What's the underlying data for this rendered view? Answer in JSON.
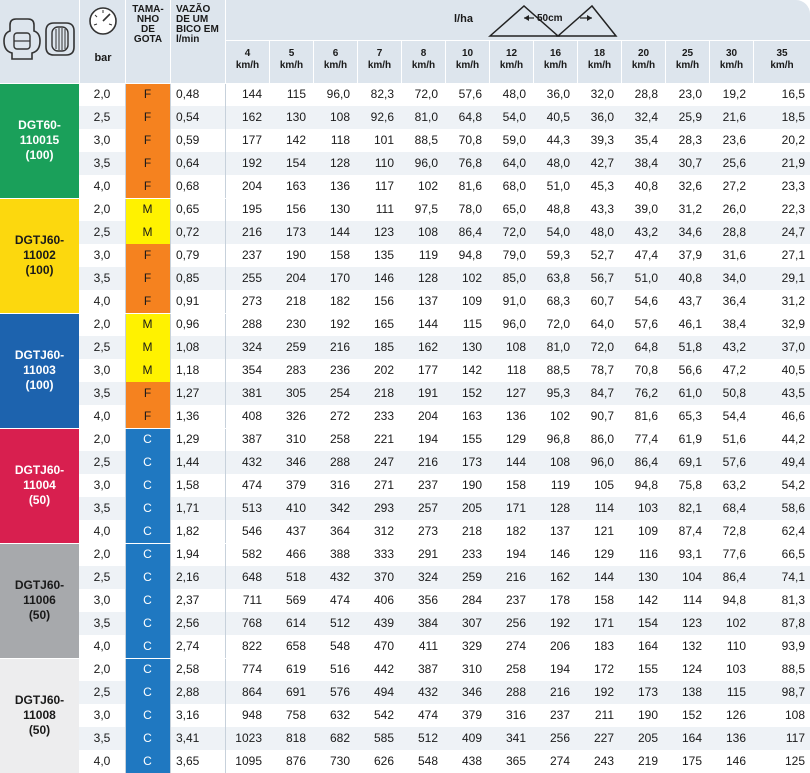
{
  "header": {
    "bar_label": "bar",
    "gota_label_lines": [
      "TAMA-",
      "NHO",
      "DE",
      "GOTA"
    ],
    "vazao_label_lines": [
      "VAZÃO",
      "DE UM",
      "BICO EM",
      "l/min"
    ],
    "rate_unit": "l/ha",
    "spacing_label": "50cm",
    "speed_unit": "km/h",
    "speeds": [
      "4",
      "5",
      "6",
      "7",
      "8",
      "10",
      "12",
      "16",
      "18",
      "20",
      "25",
      "30",
      "35"
    ]
  },
  "colors": {
    "header_bg": "#dde5ed",
    "row_shade": "#eef2f6",
    "drop_F": "#f5821f",
    "drop_M": "#fff200",
    "drop_C": "#1f78c1"
  },
  "groups": [
    {
      "label_lines": [
        "DGT60-",
        "110015",
        "(100)"
      ],
      "color": "#1aa05a",
      "rows": [
        {
          "bar": "2,0",
          "gota": "F",
          "vazao": "0,48",
          "values": [
            "144",
            "115",
            "96,0",
            "82,3",
            "72,0",
            "57,6",
            "48,0",
            "36,0",
            "32,0",
            "28,8",
            "23,0",
            "19,2",
            "16,5"
          ]
        },
        {
          "bar": "2,5",
          "gota": "F",
          "vazao": "0,54",
          "values": [
            "162",
            "130",
            "108",
            "92,6",
            "81,0",
            "64,8",
            "54,0",
            "40,5",
            "36,0",
            "32,4",
            "25,9",
            "21,6",
            "18,5"
          ]
        },
        {
          "bar": "3,0",
          "gota": "F",
          "vazao": "0,59",
          "values": [
            "177",
            "142",
            "118",
            "101",
            "88,5",
            "70,8",
            "59,0",
            "44,3",
            "39,3",
            "35,4",
            "28,3",
            "23,6",
            "20,2"
          ]
        },
        {
          "bar": "3,5",
          "gota": "F",
          "vazao": "0,64",
          "values": [
            "192",
            "154",
            "128",
            "110",
            "96,0",
            "76,8",
            "64,0",
            "48,0",
            "42,7",
            "38,4",
            "30,7",
            "25,6",
            "21,9"
          ]
        },
        {
          "bar": "4,0",
          "gota": "F",
          "vazao": "0,68",
          "values": [
            "204",
            "163",
            "136",
            "117",
            "102",
            "81,6",
            "68,0",
            "51,0",
            "45,3",
            "40,8",
            "32,6",
            "27,2",
            "23,3"
          ]
        }
      ]
    },
    {
      "label_lines": [
        "DGTJ60-",
        "11002",
        "(100)"
      ],
      "color": "#fcd80e",
      "rows": [
        {
          "bar": "2,0",
          "gota": "M",
          "vazao": "0,65",
          "values": [
            "195",
            "156",
            "130",
            "111",
            "97,5",
            "78,0",
            "65,0",
            "48,8",
            "43,3",
            "39,0",
            "31,2",
            "26,0",
            "22,3"
          ]
        },
        {
          "bar": "2,5",
          "gota": "M",
          "vazao": "0,72",
          "values": [
            "216",
            "173",
            "144",
            "123",
            "108",
            "86,4",
            "72,0",
            "54,0",
            "48,0",
            "43,2",
            "34,6",
            "28,8",
            "24,7"
          ]
        },
        {
          "bar": "3,0",
          "gota": "F",
          "vazao": "0,79",
          "values": [
            "237",
            "190",
            "158",
            "135",
            "119",
            "94,8",
            "79,0",
            "59,3",
            "52,7",
            "47,4",
            "37,9",
            "31,6",
            "27,1"
          ]
        },
        {
          "bar": "3,5",
          "gota": "F",
          "vazao": "0,85",
          "values": [
            "255",
            "204",
            "170",
            "146",
            "128",
            "102",
            "85,0",
            "63,8",
            "56,7",
            "51,0",
            "40,8",
            "34,0",
            "29,1"
          ]
        },
        {
          "bar": "4,0",
          "gota": "F",
          "vazao": "0,91",
          "values": [
            "273",
            "218",
            "182",
            "156",
            "137",
            "109",
            "91,0",
            "68,3",
            "60,7",
            "54,6",
            "43,7",
            "36,4",
            "31,2"
          ]
        }
      ]
    },
    {
      "label_lines": [
        "DGTJ60-",
        "11003",
        "(100)"
      ],
      "color": "#1d63ae",
      "rows": [
        {
          "bar": "2,0",
          "gota": "M",
          "vazao": "0,96",
          "values": [
            "288",
            "230",
            "192",
            "165",
            "144",
            "115",
            "96,0",
            "72,0",
            "64,0",
            "57,6",
            "46,1",
            "38,4",
            "32,9"
          ]
        },
        {
          "bar": "2,5",
          "gota": "M",
          "vazao": "1,08",
          "values": [
            "324",
            "259",
            "216",
            "185",
            "162",
            "130",
            "108",
            "81,0",
            "72,0",
            "64,8",
            "51,8",
            "43,2",
            "37,0"
          ]
        },
        {
          "bar": "3,0",
          "gota": "M",
          "vazao": "1,18",
          "values": [
            "354",
            "283",
            "236",
            "202",
            "177",
            "142",
            "118",
            "88,5",
            "78,7",
            "70,8",
            "56,6",
            "47,2",
            "40,5"
          ]
        },
        {
          "bar": "3,5",
          "gota": "F",
          "vazao": "1,27",
          "values": [
            "381",
            "305",
            "254",
            "218",
            "191",
            "152",
            "127",
            "95,3",
            "84,7",
            "76,2",
            "61,0",
            "50,8",
            "43,5"
          ]
        },
        {
          "bar": "4,0",
          "gota": "F",
          "vazao": "1,36",
          "values": [
            "408",
            "326",
            "272",
            "233",
            "204",
            "163",
            "136",
            "102",
            "90,7",
            "81,6",
            "65,3",
            "54,4",
            "46,6"
          ]
        }
      ]
    },
    {
      "label_lines": [
        "DGTJ60-",
        "11004",
        "(50)"
      ],
      "color": "#d81f4f",
      "rows": [
        {
          "bar": "2,0",
          "gota": "C",
          "vazao": "1,29",
          "values": [
            "387",
            "310",
            "258",
            "221",
            "194",
            "155",
            "129",
            "96,8",
            "86,0",
            "77,4",
            "61,9",
            "51,6",
            "44,2"
          ]
        },
        {
          "bar": "2,5",
          "gota": "C",
          "vazao": "1,44",
          "values": [
            "432",
            "346",
            "288",
            "247",
            "216",
            "173",
            "144",
            "108",
            "96,0",
            "86,4",
            "69,1",
            "57,6",
            "49,4"
          ]
        },
        {
          "bar": "3,0",
          "gota": "C",
          "vazao": "1,58",
          "values": [
            "474",
            "379",
            "316",
            "271",
            "237",
            "190",
            "158",
            "119",
            "105",
            "94,8",
            "75,8",
            "63,2",
            "54,2"
          ]
        },
        {
          "bar": "3,5",
          "gota": "C",
          "vazao": "1,71",
          "values": [
            "513",
            "410",
            "342",
            "293",
            "257",
            "205",
            "171",
            "128",
            "114",
            "103",
            "82,1",
            "68,4",
            "58,6"
          ]
        },
        {
          "bar": "4,0",
          "gota": "C",
          "vazao": "1,82",
          "values": [
            "546",
            "437",
            "364",
            "312",
            "273",
            "218",
            "182",
            "137",
            "121",
            "109",
            "87,4",
            "72,8",
            "62,4"
          ]
        }
      ]
    },
    {
      "label_lines": [
        "DGTJ60-",
        "11006",
        "(50)"
      ],
      "color": "#a7a9ac",
      "rows": [
        {
          "bar": "2,0",
          "gota": "C",
          "vazao": "1,94",
          "values": [
            "582",
            "466",
            "388",
            "333",
            "291",
            "233",
            "194",
            "146",
            "129",
            "116",
            "93,1",
            "77,6",
            "66,5"
          ]
        },
        {
          "bar": "2,5",
          "gota": "C",
          "vazao": "2,16",
          "values": [
            "648",
            "518",
            "432",
            "370",
            "324",
            "259",
            "216",
            "162",
            "144",
            "130",
            "104",
            "86,4",
            "74,1"
          ]
        },
        {
          "bar": "3,0",
          "gota": "C",
          "vazao": "2,37",
          "values": [
            "711",
            "569",
            "474",
            "406",
            "356",
            "284",
            "237",
            "178",
            "158",
            "142",
            "114",
            "94,8",
            "81,3"
          ]
        },
        {
          "bar": "3,5",
          "gota": "C",
          "vazao": "2,56",
          "values": [
            "768",
            "614",
            "512",
            "439",
            "384",
            "307",
            "256",
            "192",
            "171",
            "154",
            "123",
            "102",
            "87,8"
          ]
        },
        {
          "bar": "4,0",
          "gota": "C",
          "vazao": "2,74",
          "values": [
            "822",
            "658",
            "548",
            "470",
            "411",
            "329",
            "274",
            "206",
            "183",
            "164",
            "132",
            "110",
            "93,9"
          ]
        }
      ]
    },
    {
      "label_lines": [
        "DGTJ60-",
        "11008",
        "(50)"
      ],
      "color": "#ededee",
      "rows": [
        {
          "bar": "2,0",
          "gota": "C",
          "vazao": "2,58",
          "values": [
            "774",
            "619",
            "516",
            "442",
            "387",
            "310",
            "258",
            "194",
            "172",
            "155",
            "124",
            "103",
            "88,5"
          ]
        },
        {
          "bar": "2,5",
          "gota": "C",
          "vazao": "2,88",
          "values": [
            "864",
            "691",
            "576",
            "494",
            "432",
            "346",
            "288",
            "216",
            "192",
            "173",
            "138",
            "115",
            "98,7"
          ]
        },
        {
          "bar": "3,0",
          "gota": "C",
          "vazao": "3,16",
          "values": [
            "948",
            "758",
            "632",
            "542",
            "474",
            "379",
            "316",
            "237",
            "211",
            "190",
            "152",
            "126",
            "108"
          ]
        },
        {
          "bar": "3,5",
          "gota": "C",
          "vazao": "3,41",
          "values": [
            "1023",
            "818",
            "682",
            "585",
            "512",
            "409",
            "341",
            "256",
            "227",
            "205",
            "164",
            "136",
            "117"
          ]
        },
        {
          "bar": "4,0",
          "gota": "C",
          "vazao": "3,65",
          "values": [
            "1095",
            "876",
            "730",
            "626",
            "548",
            "438",
            "365",
            "274",
            "243",
            "219",
            "175",
            "146",
            "125"
          ]
        }
      ]
    }
  ]
}
